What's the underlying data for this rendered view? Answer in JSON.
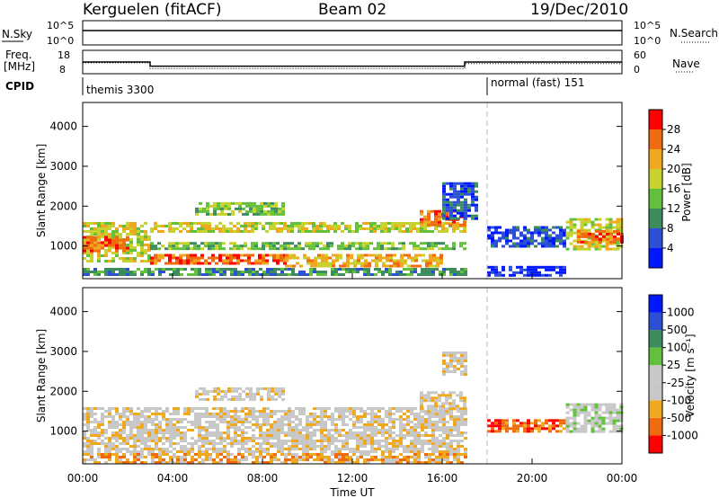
{
  "header": {
    "station": "Kerguelen (fitACF)",
    "beam": "Beam 02",
    "date": "19/Dec/2010"
  },
  "noise_panel": {
    "left_label": "N.Sky",
    "left_ticks": [
      "10^5",
      "10^0"
    ],
    "right_ticks": [
      "10^5",
      "10^0"
    ],
    "right_label": "N.Search"
  },
  "freq_panel": {
    "left_label_1": "Freq.",
    "left_label_2": "[MHz]",
    "left_ticks": [
      "18",
      "8"
    ],
    "right_ticks": [
      "60",
      "0"
    ],
    "right_label": "Nave",
    "freq_series": [
      {
        "t": 0.0,
        "f": 13.0
      },
      {
        "t": 3.0,
        "f": 13.0
      },
      {
        "t": 3.0,
        "f": 11.2
      },
      {
        "t": 17.0,
        "f": 11.2
      },
      {
        "t": 17.0,
        "f": 13.0
      },
      {
        "t": 24.0,
        "f": 13.0
      }
    ],
    "nave_series": [
      {
        "t": 0.0,
        "n": 28
      },
      {
        "t": 3.0,
        "n": 28
      },
      {
        "t": 3.0,
        "n": 13
      },
      {
        "t": 17.0,
        "n": 13
      },
      {
        "t": 17.0,
        "n": 26
      },
      {
        "t": 24.0,
        "n": 26
      }
    ]
  },
  "cpid": {
    "label": "CPID",
    "modes": [
      {
        "name": "themis 3300",
        "start": 0.0
      },
      {
        "name": "normal (fast) 151",
        "start": 18.0
      }
    ]
  },
  "chart_data": [
    {
      "type": "heatmap",
      "name": "power",
      "ylabel": "Slant Range [km]",
      "xlabel": "Time UT",
      "xlim": [
        0,
        24
      ],
      "ylim": [
        180,
        4600
      ],
      "yticks": [
        {
          "v": 1000,
          "label": "1000"
        },
        {
          "v": 2000,
          "label": "2000"
        },
        {
          "v": 3000,
          "label": "3000"
        },
        {
          "v": 4000,
          "label": "4000"
        }
      ],
      "colorbar": {
        "label": "Power [dB]",
        "colors": [
          "#0018ff",
          "#2c4fd6",
          "#3d8c5e",
          "#62c03c",
          "#c8d22e",
          "#f0a81e",
          "#f06a10",
          "#ff0000"
        ],
        "ticks": [
          "4",
          "8",
          "12",
          "16",
          "20",
          "24",
          "28"
        ]
      },
      "bands": [
        {
          "t0": 0.0,
          "t1": 3.0,
          "r0": 600,
          "r1": 1600,
          "level": 4
        },
        {
          "t0": 0.0,
          "t1": 2.0,
          "r0": 850,
          "r1": 1250,
          "level": 6
        },
        {
          "t0": 3.0,
          "t1": 17.0,
          "r0": 900,
          "r1": 1100,
          "level": 3
        },
        {
          "t0": 3.0,
          "t1": 9.0,
          "r0": 550,
          "r1": 800,
          "level": 6
        },
        {
          "t0": 9.0,
          "t1": 16.0,
          "r0": 500,
          "r1": 800,
          "level": 5
        },
        {
          "t0": 3.0,
          "t1": 17.0,
          "r0": 1350,
          "r1": 1600,
          "level": 4
        },
        {
          "t0": 5.0,
          "t1": 9.0,
          "r0": 1800,
          "r1": 2100,
          "level": 3
        },
        {
          "t0": 15.0,
          "t1": 17.0,
          "r0": 1500,
          "r1": 1900,
          "level": 6
        },
        {
          "t0": 16.0,
          "t1": 17.5,
          "r0": 1700,
          "r1": 2600,
          "level": 1
        },
        {
          "t0": 18.0,
          "t1": 21.5,
          "r0": 1000,
          "r1": 1500,
          "level": 1
        },
        {
          "t0": 18.0,
          "t1": 21.5,
          "r0": 250,
          "r1": 500,
          "level": 0
        },
        {
          "t0": 21.5,
          "t1": 24.0,
          "r0": 900,
          "r1": 1700,
          "level": 4
        },
        {
          "t0": 22.0,
          "t1": 24.0,
          "r0": 1100,
          "r1": 1400,
          "level": 6
        },
        {
          "t0": 0.0,
          "t1": 17.0,
          "r0": 250,
          "r1": 450,
          "level": 2
        }
      ]
    },
    {
      "type": "heatmap",
      "name": "velocity",
      "ylabel": "Slant Range [km]",
      "xlabel": "Time UT",
      "xlim": [
        0,
        24
      ],
      "ylim": [
        180,
        4600
      ],
      "yticks": [
        {
          "v": 1000,
          "label": "1000"
        },
        {
          "v": 2000,
          "label": "2000"
        },
        {
          "v": 3000,
          "label": "3000"
        },
        {
          "v": 4000,
          "label": "4000"
        }
      ],
      "xticks": [
        {
          "v": 0,
          "label": "00:00"
        },
        {
          "v": 4,
          "label": "04:00"
        },
        {
          "v": 8,
          "label": "08:00"
        },
        {
          "v": 12,
          "label": "12:00"
        },
        {
          "v": 16,
          "label": "16:00"
        },
        {
          "v": 20,
          "label": "20:00"
        },
        {
          "v": 24,
          "label": "00:00"
        }
      ],
      "colorbar": {
        "label": "Velocity [m s⁻¹]",
        "colors": [
          "#ff0000",
          "#f06a10",
          "#f0a81e",
          "#c8c8c8",
          "#c8c8c8",
          "#62c03c",
          "#3d8c5e",
          "#2c4fd6",
          "#0018ff"
        ],
        "ticks": [
          "-1000",
          "-500",
          "-100",
          "-25",
          "25",
          "100",
          "500",
          "1000"
        ]
      },
      "bands": [
        {
          "t0": 0.0,
          "t1": 17.0,
          "r0": 500,
          "r1": 1600,
          "level": 3
        },
        {
          "t0": 5.0,
          "t1": 9.0,
          "r0": 1800,
          "r1": 2100,
          "level": 3
        },
        {
          "t0": 15.0,
          "t1": 17.0,
          "r0": 1500,
          "r1": 2000,
          "level": 3
        },
        {
          "t0": 16.0,
          "t1": 17.0,
          "r0": 2400,
          "r1": 3000,
          "level": 3
        },
        {
          "t0": 18.0,
          "t1": 21.5,
          "r0": 1000,
          "r1": 1300,
          "level": 1
        },
        {
          "t0": 21.5,
          "t1": 24.0,
          "r0": 1000,
          "r1": 1700,
          "level": 4
        },
        {
          "t0": 0.0,
          "t1": 17.0,
          "r0": 200,
          "r1": 450,
          "level": 2
        }
      ]
    }
  ]
}
